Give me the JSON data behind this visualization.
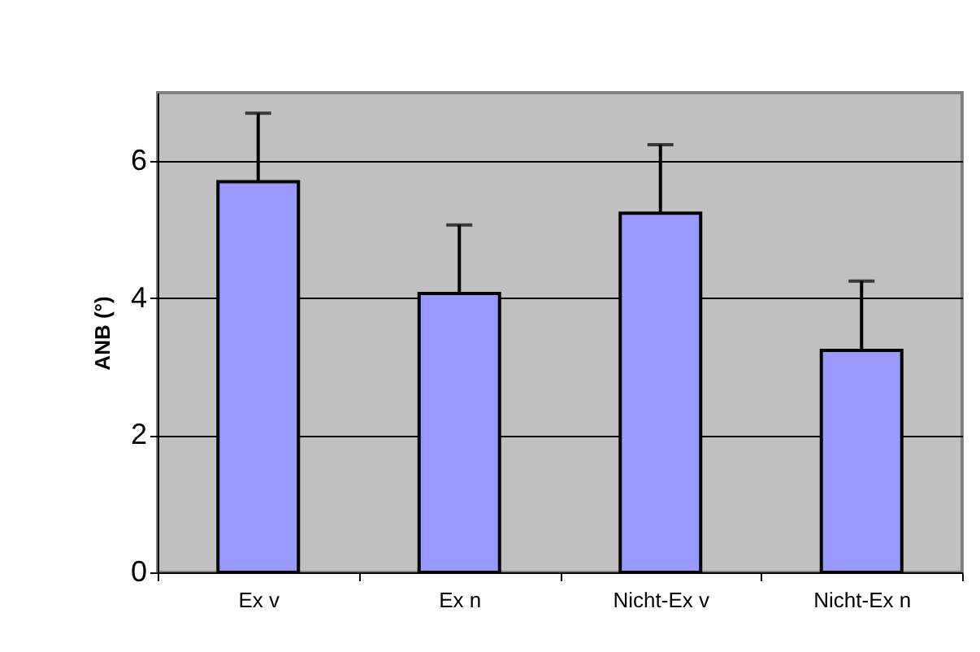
{
  "chart_data": {
    "type": "bar",
    "ylabel": "ANB (°)",
    "categories": [
      "Ex v",
      "Ex n",
      "Nicht-Ex v",
      "Nicht-Ex n"
    ],
    "values": [
      5.7,
      4.07,
      5.24,
      3.24
    ],
    "errors": [
      [
        5.7,
        6.7
      ],
      [
        4.07,
        5.07
      ],
      [
        5.24,
        6.24
      ],
      [
        3.24,
        4.25
      ]
    ],
    "color": "#9999ff",
    "ylim": [
      0,
      7
    ],
    "yticks": [
      0,
      2,
      4,
      6
    ],
    "grid": "y"
  }
}
